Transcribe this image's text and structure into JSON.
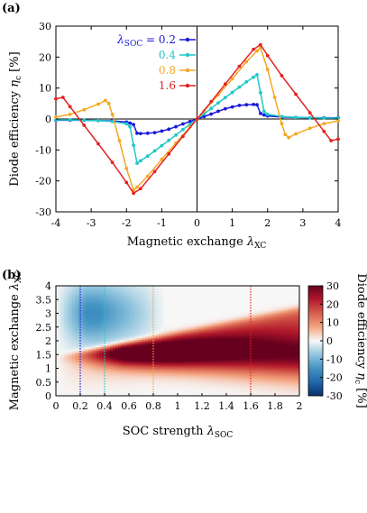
{
  "figure": {
    "panel_a_label": "(a)",
    "panel_b_label": "(b)"
  },
  "chart_data": [
    {
      "type": "line",
      "panel": "(a)",
      "xlabel_main": "Magnetic exchange ",
      "xlabel_sym": "λ",
      "xlabel_sub": "XC",
      "ylabel_main": "Diode efficiency ",
      "ylabel_sym": "η",
      "ylabel_sub": "c",
      "ylabel_unit": " [%]",
      "xlim": [
        -4,
        4
      ],
      "ylim": [
        -30,
        30
      ],
      "xticks": [
        "-4",
        "-3",
        "-2",
        "-1",
        "0",
        "1",
        "2",
        "3",
        "4"
      ],
      "yticks": [
        "-30",
        "-20",
        "-10",
        "0",
        "10",
        "20",
        "30"
      ],
      "legend_symbol": "λ",
      "legend_sub": "SOC",
      "legend_position": "top-left",
      "series": [
        {
          "name": "0.2",
          "legend_prefix": " = ",
          "color": "#1a1adc",
          "x": [
            -4,
            -3.6,
            -3.2,
            -2.8,
            -2.4,
            -2.0,
            -1.9,
            -1.8,
            -1.7,
            -1.6,
            -1.4,
            -1.2,
            -1.0,
            -0.8,
            -0.6,
            -0.4,
            -0.2,
            0,
            0.2,
            0.4,
            0.6,
            0.8,
            1.0,
            1.2,
            1.4,
            1.6,
            1.7,
            1.8,
            1.9,
            2.0,
            2.4,
            2.8,
            3.2,
            3.6,
            4
          ],
          "y": [
            -0.4,
            -0.4,
            -0.4,
            -0.5,
            -0.6,
            -1.0,
            -1.3,
            -1.8,
            -4.6,
            -4.7,
            -4.6,
            -4.4,
            -3.9,
            -3.3,
            -2.5,
            -1.6,
            -0.8,
            0,
            0.8,
            1.6,
            2.5,
            3.3,
            3.9,
            4.4,
            4.6,
            4.7,
            4.6,
            1.8,
            1.3,
            1.0,
            0.6,
            0.5,
            0.4,
            0.4,
            0.4
          ]
        },
        {
          "name": "0.4",
          "legend_prefix": "",
          "color": "#1ec8c8",
          "x": [
            -4,
            -3.6,
            -3.2,
            -2.8,
            -2.4,
            -2.0,
            -1.9,
            -1.8,
            -1.7,
            -1.6,
            -1.4,
            -1.2,
            -1.0,
            -0.8,
            -0.6,
            -0.4,
            -0.2,
            0,
            0.2,
            0.4,
            0.6,
            0.8,
            1.0,
            1.2,
            1.4,
            1.6,
            1.7,
            1.8,
            1.9,
            2.0,
            2.4,
            2.8,
            3.2,
            3.6,
            4
          ],
          "y": [
            -0.3,
            -0.3,
            -0.4,
            -0.5,
            -0.8,
            -1.5,
            -2.5,
            -8.5,
            -14.3,
            -13.5,
            -12.0,
            -10.3,
            -8.6,
            -6.9,
            -5.2,
            -3.4,
            -1.7,
            0,
            1.7,
            3.4,
            5.2,
            6.9,
            8.6,
            10.3,
            12.0,
            13.5,
            14.3,
            8.5,
            2.5,
            1.5,
            0.8,
            0.5,
            0.4,
            0.3,
            0.3
          ]
        },
        {
          "name": "0.8",
          "legend_prefix": "",
          "color": "#f5a623",
          "x": [
            -4,
            -3.6,
            -3.2,
            -2.8,
            -2.6,
            -2.5,
            -2.4,
            -2.2,
            -2.0,
            -1.8,
            -1.7,
            -1.4,
            -1.0,
            -0.6,
            -0.2,
            0,
            0.2,
            0.6,
            1.0,
            1.4,
            1.7,
            1.8,
            2.0,
            2.2,
            2.4,
            2.5,
            2.6,
            2.8,
            3.2,
            3.6,
            4
          ],
          "y": [
            0.6,
            1.5,
            3.0,
            4.8,
            6.0,
            5.0,
            1.5,
            -7.0,
            -16.0,
            -23.0,
            -22.0,
            -18.5,
            -13.0,
            -7.8,
            -2.6,
            0,
            2.6,
            7.8,
            13.0,
            18.5,
            22.0,
            23.0,
            16.0,
            7.0,
            -1.5,
            -5.0,
            -6.0,
            -4.8,
            -3.0,
            -1.5,
            -0.6
          ]
        },
        {
          "name": "1.6",
          "legend_prefix": "",
          "color": "#e32222",
          "x": [
            -4,
            -3.8,
            -3.6,
            -3.2,
            -2.8,
            -2.4,
            -2.0,
            -1.8,
            -1.6,
            -1.2,
            -0.8,
            -0.4,
            0,
            0.4,
            0.8,
            1.2,
            1.6,
            1.8,
            2.0,
            2.4,
            2.8,
            3.2,
            3.6,
            3.8,
            4
          ],
          "y": [
            6.5,
            7.0,
            4.0,
            -2.0,
            -8.0,
            -14.0,
            -20.5,
            -24.0,
            -22.5,
            -17.0,
            -11.3,
            -5.6,
            0,
            5.6,
            11.3,
            17.0,
            22.5,
            24.0,
            20.5,
            14.0,
            8.0,
            2.0,
            -4.0,
            -7.0,
            -6.5
          ]
        }
      ]
    },
    {
      "type": "heatmap",
      "panel": "(b)",
      "xlabel_main": "SOC strength ",
      "xlabel_sym": "λ",
      "xlabel_sub": "SOC",
      "ylabel_main": "Magnetic exchange ",
      "ylabel_sym": "λ",
      "ylabel_sub": "XC",
      "xlim": [
        0,
        2
      ],
      "ylim": [
        0,
        4
      ],
      "xticks": [
        "0",
        "0.2",
        "0.4",
        "0.6",
        "0.8",
        "1",
        "1.2",
        "1.4",
        "1.6",
        "1.8",
        "2"
      ],
      "yticks": [
        "0",
        "0.5",
        "1",
        "1.5",
        "2",
        "2.5",
        "3",
        "3.5",
        "4"
      ],
      "colorbar_label_main": "Diode efficiency ",
      "colorbar_label_sym": "η",
      "colorbar_label_sub": "c",
      "colorbar_label_unit": " [%]",
      "colorbar_range": [
        -30,
        30
      ],
      "colorbar_ticks": [
        "30",
        "20",
        "10",
        "0",
        "-10",
        "-20",
        "-30"
      ],
      "colormap": [
        "#08306b",
        "#2166ac",
        "#4393c3",
        "#92c5de",
        "#f7f7f7",
        "#f4a582",
        "#d6604d",
        "#b2182b",
        "#67001f"
      ],
      "cut_lines": [
        {
          "x": 0.2,
          "color": "#1a1adc"
        },
        {
          "x": 0.4,
          "color": "#1ec8c8"
        },
        {
          "x": 0.8,
          "color": "#f5a623"
        },
        {
          "x": 1.6,
          "color": "#e32222"
        }
      ]
    }
  ]
}
